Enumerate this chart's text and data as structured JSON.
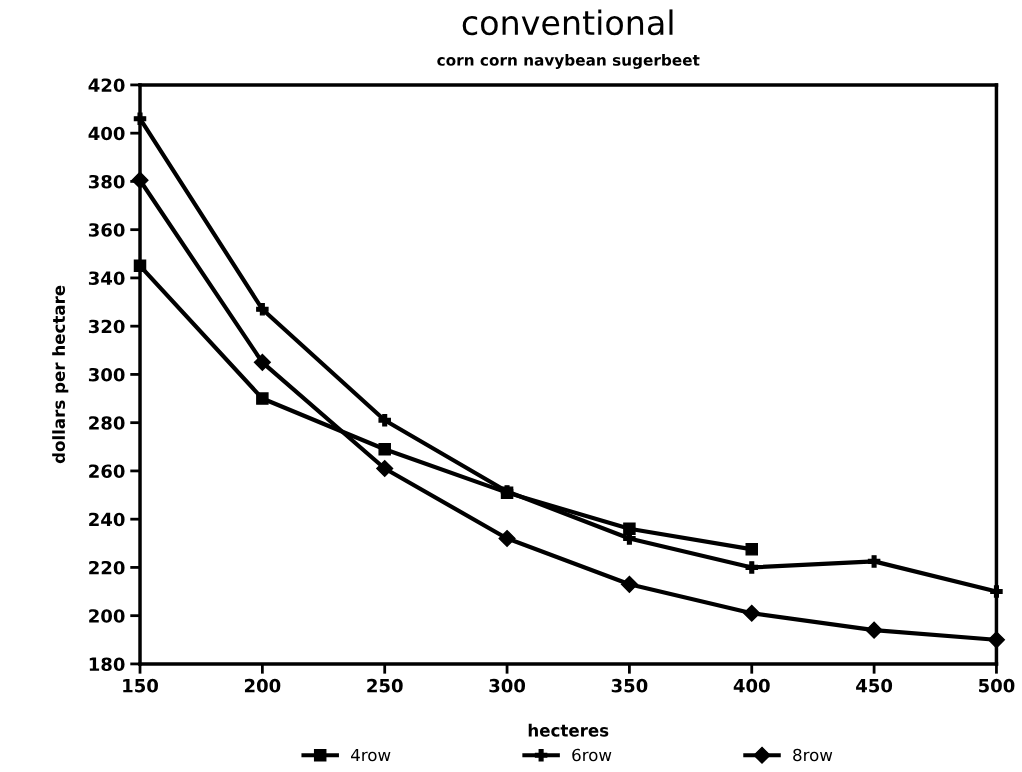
{
  "chart_data": {
    "type": "line",
    "title": "conventional",
    "subtitle": "corn corn navybean sugerbeet",
    "xlabel": "hecteres",
    "ylabel": "dollars per hectare",
    "x": [
      150,
      200,
      250,
      300,
      350,
      400,
      450,
      500
    ],
    "series": [
      {
        "name": "4row",
        "color": "#000000",
        "marker": "square",
        "values": [
          345,
          290,
          269,
          251,
          236,
          227.5,
          null,
          null
        ]
      },
      {
        "name": "6row",
        "color": "#000000",
        "marker": "cross",
        "values": [
          406,
          327,
          281,
          251.5,
          232,
          220,
          222.5,
          210
        ]
      },
      {
        "name": "8row",
        "color": "#000000",
        "marker": "diamond",
        "values": [
          380.5,
          305,
          261,
          232,
          213,
          201,
          194,
          190
        ]
      }
    ],
    "xlim": [
      150,
      500
    ],
    "xticks": [
      150,
      200,
      250,
      300,
      350,
      400,
      450,
      500
    ],
    "ylim": [
      180,
      420
    ],
    "yticks": [
      180,
      200,
      220,
      240,
      260,
      280,
      300,
      320,
      340,
      360,
      380,
      400,
      420
    ],
    "grid": false,
    "legend": "bottom",
    "line_style": "solid"
  }
}
